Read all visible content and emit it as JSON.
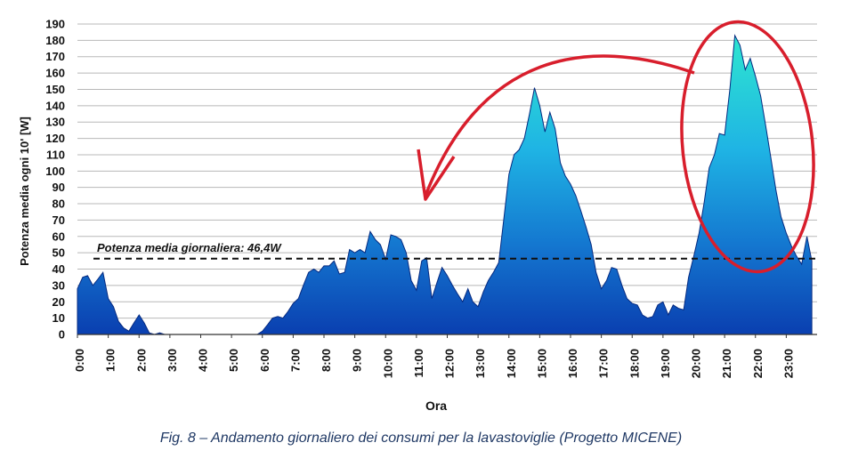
{
  "caption": "Fig. 8 – Andamento giornaliero dei consumi per la lavastoviglie (Progetto MICENE)",
  "chart_data": {
    "type": "area",
    "title": "",
    "xlabel": "Ora",
    "ylabel": "Potenza media ogni 10' [W]",
    "ylim": [
      0,
      190
    ],
    "yticks": [
      0,
      10,
      20,
      30,
      40,
      50,
      60,
      70,
      80,
      90,
      100,
      110,
      120,
      130,
      140,
      150,
      160,
      170,
      180,
      190
    ],
    "xlim": [
      0,
      24
    ],
    "xtick_labels": [
      "0:00",
      "1:00",
      "2:00",
      "3:00",
      "4:00",
      "5:00",
      "6:00",
      "7:00",
      "8:00",
      "9:00",
      "10:00",
      "11:00",
      "12:00",
      "13:00",
      "14:00",
      "15:00",
      "16:00",
      "17:00",
      "18:00",
      "19:00",
      "20:00",
      "21:00",
      "22:00",
      "23:00"
    ],
    "grid": "horizontal",
    "reference_line": {
      "value": 46.4,
      "label": "Potenza media giornaliera: 46,4W",
      "style": "dashed"
    },
    "annotation": "red ellipse around evening peak with curved arrow pointing to ~11:00",
    "colors": {
      "fill_top": "#2ee6d0",
      "fill_mid": "#1aa0e0",
      "fill_bottom": "#0a3fb0",
      "edge": "#062a80",
      "annotation": "#d81e2c"
    },
    "series": [
      {
        "values": [
          [
            0.0,
            28
          ],
          [
            0.17,
            35
          ],
          [
            0.33,
            36
          ],
          [
            0.5,
            30
          ],
          [
            0.67,
            34
          ],
          [
            0.83,
            38
          ],
          [
            1.0,
            22
          ],
          [
            1.17,
            17
          ],
          [
            1.33,
            8
          ],
          [
            1.5,
            4
          ],
          [
            1.67,
            2
          ],
          [
            1.83,
            7
          ],
          [
            2.0,
            12
          ],
          [
            2.17,
            7
          ],
          [
            2.33,
            1
          ],
          [
            2.5,
            0
          ],
          [
            2.67,
            1
          ],
          [
            2.83,
            0
          ],
          [
            3.0,
            0
          ],
          [
            4.0,
            0
          ],
          [
            5.0,
            0
          ],
          [
            5.83,
            0
          ],
          [
            6.0,
            2
          ],
          [
            6.17,
            6
          ],
          [
            6.33,
            10
          ],
          [
            6.5,
            11
          ],
          [
            6.67,
            10
          ],
          [
            6.83,
            14
          ],
          [
            7.0,
            19
          ],
          [
            7.17,
            22
          ],
          [
            7.33,
            30
          ],
          [
            7.5,
            38
          ],
          [
            7.67,
            40
          ],
          [
            7.83,
            38
          ],
          [
            8.0,
            42
          ],
          [
            8.17,
            42
          ],
          [
            8.33,
            45
          ],
          [
            8.5,
            37
          ],
          [
            8.67,
            38
          ],
          [
            8.83,
            52
          ],
          [
            9.0,
            50
          ],
          [
            9.17,
            52
          ],
          [
            9.33,
            50
          ],
          [
            9.5,
            63
          ],
          [
            9.67,
            58
          ],
          [
            9.83,
            55
          ],
          [
            10.0,
            46
          ],
          [
            10.17,
            61
          ],
          [
            10.33,
            60
          ],
          [
            10.5,
            58
          ],
          [
            10.67,
            50
          ],
          [
            10.83,
            33
          ],
          [
            11.0,
            27
          ],
          [
            11.17,
            45
          ],
          [
            11.33,
            47
          ],
          [
            11.5,
            22
          ],
          [
            11.67,
            32
          ],
          [
            11.83,
            41
          ],
          [
            12.0,
            36
          ],
          [
            12.17,
            30
          ],
          [
            12.33,
            25
          ],
          [
            12.5,
            20
          ],
          [
            12.67,
            28
          ],
          [
            12.83,
            20
          ],
          [
            13.0,
            17
          ],
          [
            13.17,
            26
          ],
          [
            13.33,
            33
          ],
          [
            13.5,
            38
          ],
          [
            13.67,
            44
          ],
          [
            13.83,
            70
          ],
          [
            14.0,
            98
          ],
          [
            14.17,
            110
          ],
          [
            14.33,
            113
          ],
          [
            14.5,
            120
          ],
          [
            14.67,
            135
          ],
          [
            14.83,
            151
          ],
          [
            15.0,
            140
          ],
          [
            15.17,
            124
          ],
          [
            15.33,
            136
          ],
          [
            15.5,
            126
          ],
          [
            15.67,
            105
          ],
          [
            15.83,
            97
          ],
          [
            16.0,
            92
          ],
          [
            16.17,
            85
          ],
          [
            16.33,
            76
          ],
          [
            16.5,
            66
          ],
          [
            16.67,
            55
          ],
          [
            16.83,
            38
          ],
          [
            17.0,
            28
          ],
          [
            17.17,
            33
          ],
          [
            17.33,
            41
          ],
          [
            17.5,
            40
          ],
          [
            17.67,
            30
          ],
          [
            17.83,
            22
          ],
          [
            18.0,
            19
          ],
          [
            18.17,
            18
          ],
          [
            18.33,
            12
          ],
          [
            18.5,
            10
          ],
          [
            18.67,
            11
          ],
          [
            18.83,
            18
          ],
          [
            19.0,
            20
          ],
          [
            19.17,
            12
          ],
          [
            19.33,
            18
          ],
          [
            19.5,
            16
          ],
          [
            19.67,
            15
          ],
          [
            19.83,
            35
          ],
          [
            20.0,
            48
          ],
          [
            20.17,
            62
          ],
          [
            20.33,
            80
          ],
          [
            20.5,
            102
          ],
          [
            20.67,
            110
          ],
          [
            20.83,
            123
          ],
          [
            21.0,
            122
          ],
          [
            21.17,
            150
          ],
          [
            21.33,
            183
          ],
          [
            21.5,
            177
          ],
          [
            21.67,
            162
          ],
          [
            21.83,
            169
          ],
          [
            22.0,
            158
          ],
          [
            22.17,
            146
          ],
          [
            22.33,
            128
          ],
          [
            22.5,
            108
          ],
          [
            22.67,
            88
          ],
          [
            22.83,
            72
          ],
          [
            23.0,
            62
          ],
          [
            23.17,
            54
          ],
          [
            23.33,
            48
          ],
          [
            23.5,
            43
          ],
          [
            23.67,
            60
          ],
          [
            23.83,
            45
          ]
        ]
      }
    ]
  }
}
